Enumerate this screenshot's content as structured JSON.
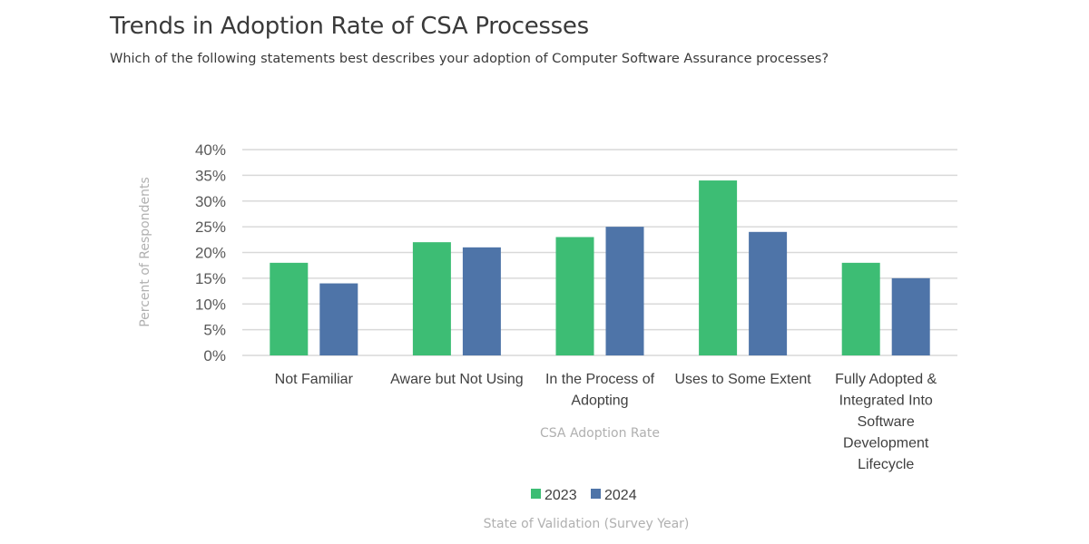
{
  "title": "Trends in Adoption Rate of CSA Processes",
  "subtitle": "Which of the following statements best describes your adoption of Computer Software Assurance processes?",
  "chart_data": {
    "type": "bar",
    "title": "Trends in Adoption Rate of CSA Processes",
    "subtitle": "Which of the following statements best describes your adoption of Computer Software Assurance processes?",
    "xlabel": "CSA Adoption Rate",
    "ylabel": "Percent of Respondents",
    "legend_title": "State of Validation (Survey Year)",
    "legend_position": "bottom",
    "categories": [
      [
        "Not Familiar"
      ],
      [
        "Aware but Not Using"
      ],
      [
        "In the Process of",
        "Adopting"
      ],
      [
        "Uses to Some Extent"
      ],
      [
        "Fully Adopted &",
        "Integrated Into",
        "Software",
        "Development",
        "Lifecycle"
      ]
    ],
    "series": [
      {
        "name": "2023",
        "color": "#3dbd74",
        "values": [
          18,
          22,
          23,
          34,
          18
        ]
      },
      {
        "name": "2024",
        "color": "#4e74a8",
        "values": [
          14,
          21,
          25,
          24,
          15
        ]
      }
    ],
    "ylim": [
      0,
      40
    ],
    "yticks": [
      0,
      5,
      10,
      15,
      20,
      25,
      30,
      35,
      40
    ],
    "ytick_format": "%",
    "grid": true
  }
}
